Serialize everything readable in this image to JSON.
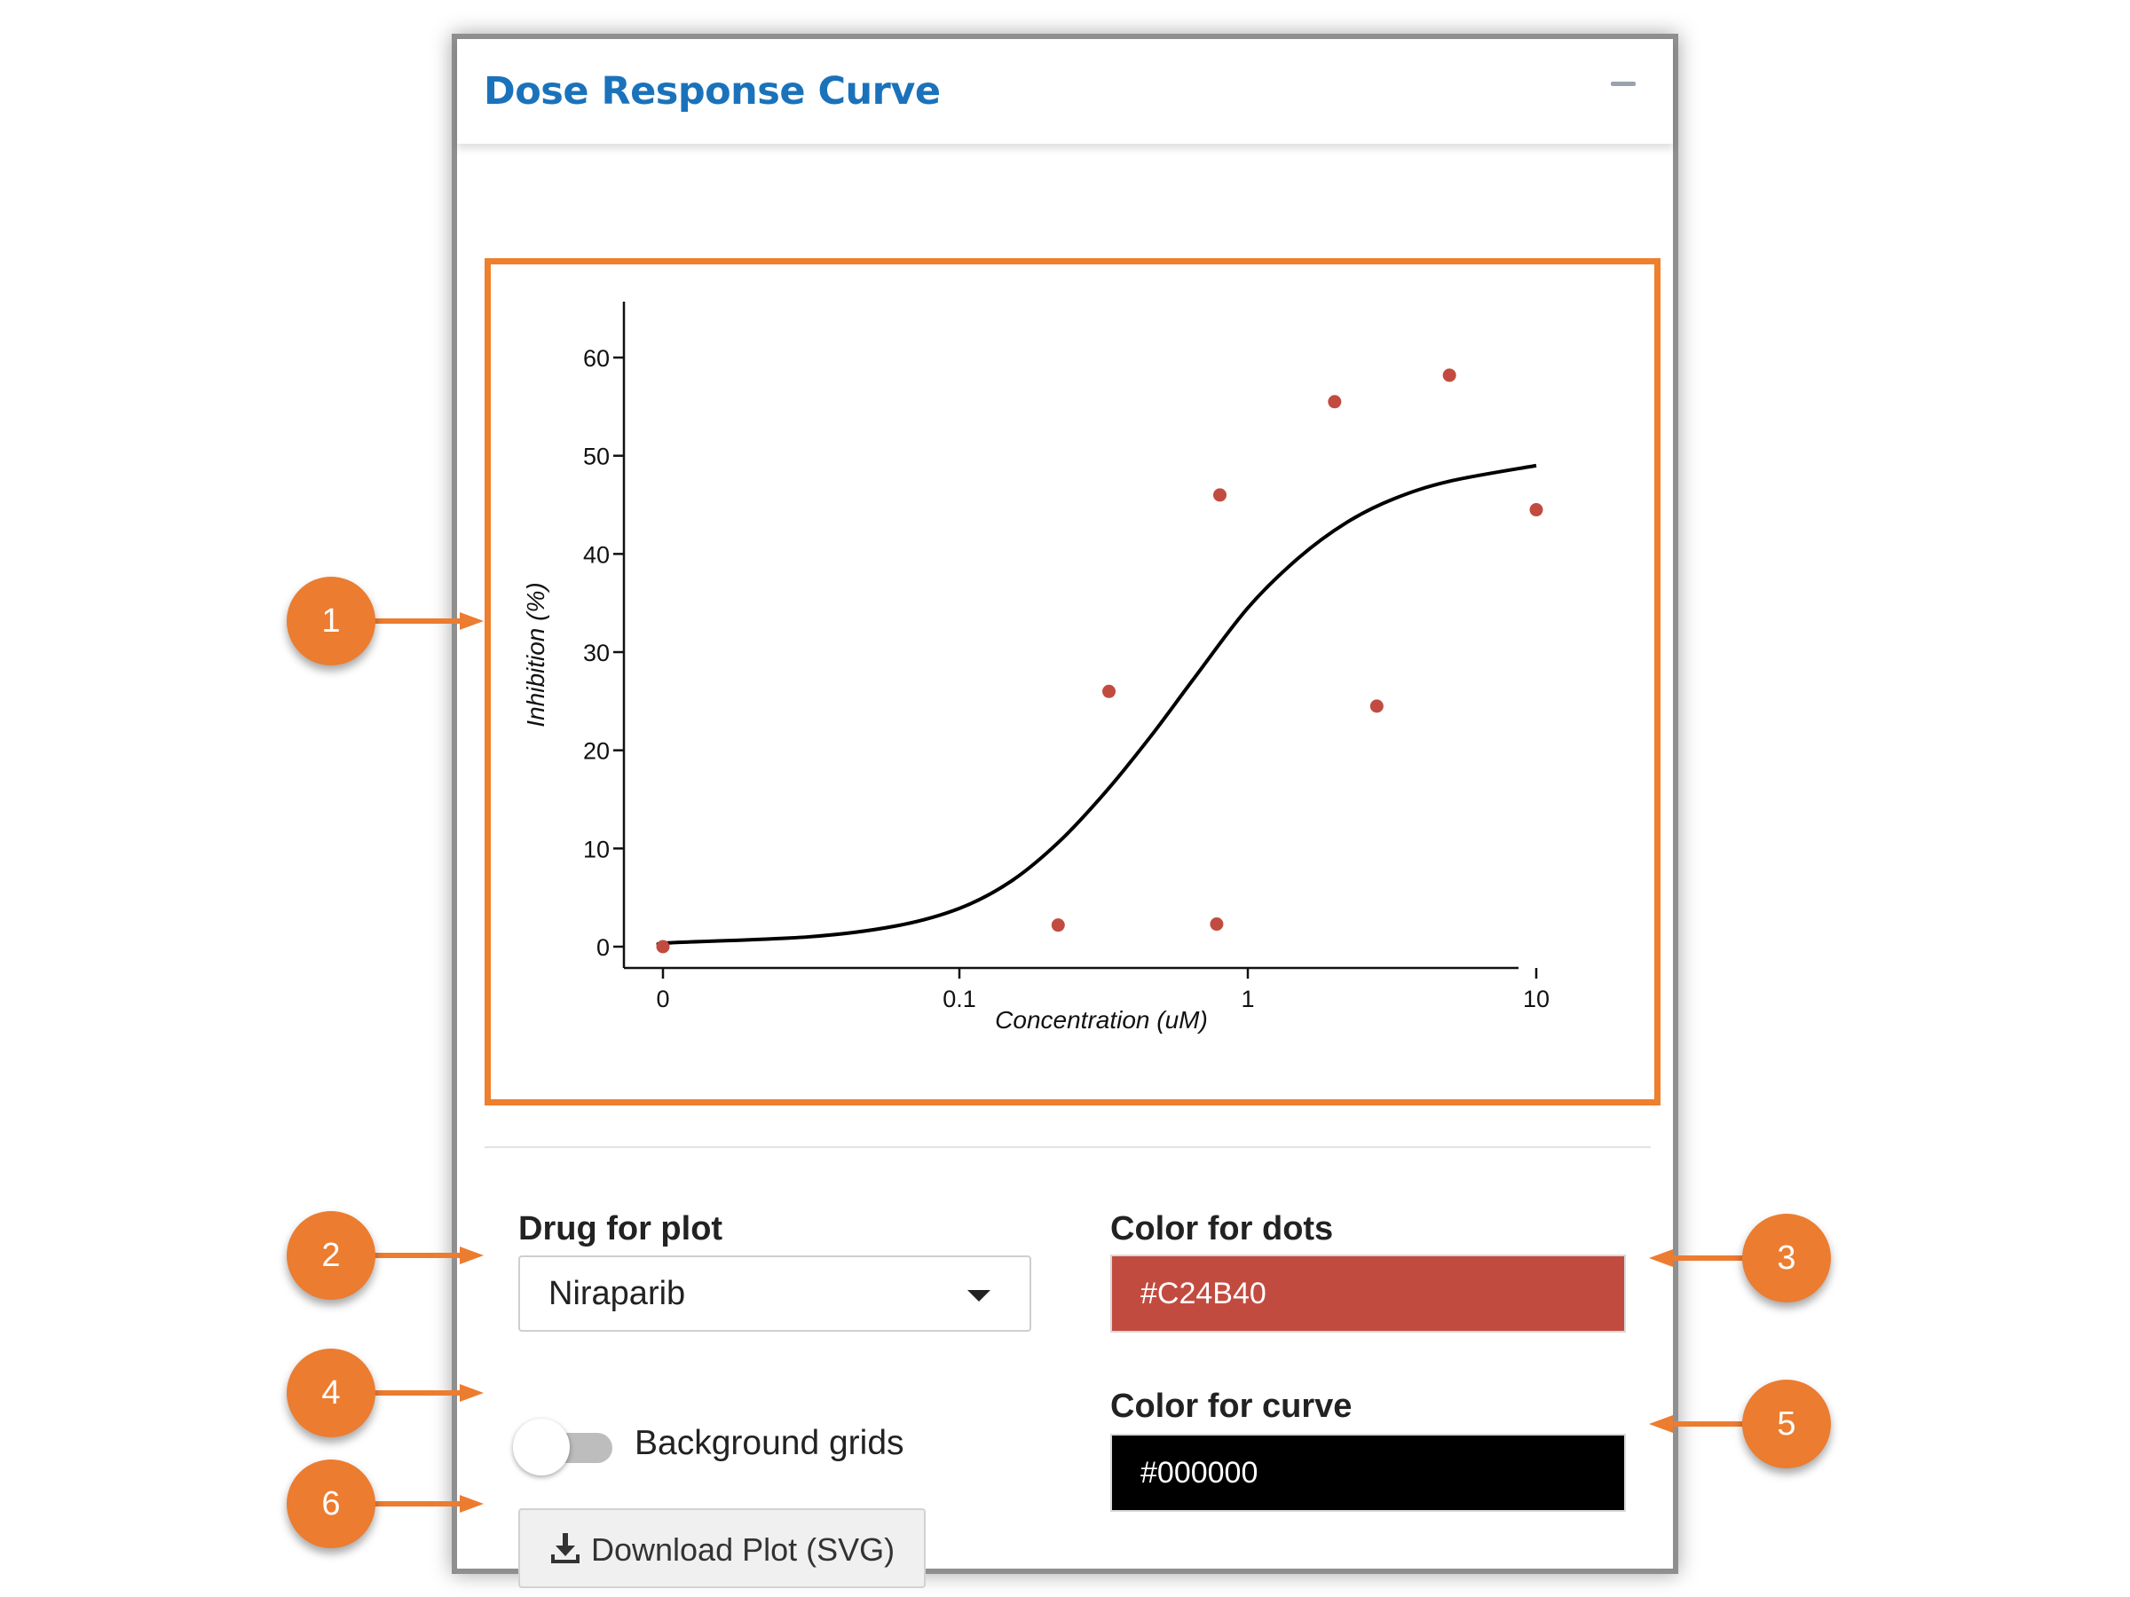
{
  "panel": {
    "title": "Dose Response Curve"
  },
  "chart_data": {
    "type": "scatter",
    "xlabel": "Concentration (uM)",
    "ylabel": "Inhibition (%)",
    "x_scale": "log",
    "x_ticks": [
      "0",
      "0.1",
      "1",
      "10"
    ],
    "y_ticks": [
      "0",
      "10",
      "20",
      "30",
      "40",
      "50",
      "60"
    ],
    "ylim": [
      0,
      60
    ],
    "series": [
      {
        "kind": "points",
        "color": "#C24B40",
        "points": [
          {
            "x": 0,
            "y": 0
          },
          {
            "x": 0.22,
            "y": 2.2
          },
          {
            "x": 0.33,
            "y": 26
          },
          {
            "x": 0.78,
            "y": 2.3
          },
          {
            "x": 0.8,
            "y": 46
          },
          {
            "x": 2.0,
            "y": 55.5
          },
          {
            "x": 2.8,
            "y": 24.5
          },
          {
            "x": 5.0,
            "y": 58.2
          },
          {
            "x": 10,
            "y": 44.5
          }
        ]
      },
      {
        "kind": "fitted-curve",
        "color": "#000000",
        "points": [
          {
            "x": 0,
            "y": 0.2
          },
          {
            "x": 0.01,
            "y": 0.4
          },
          {
            "x": 0.03,
            "y": 1.0
          },
          {
            "x": 0.06,
            "y": 2.1
          },
          {
            "x": 0.1,
            "y": 3.9
          },
          {
            "x": 0.15,
            "y": 6.6
          },
          {
            "x": 0.22,
            "y": 10.6
          },
          {
            "x": 0.32,
            "y": 15.7
          },
          {
            "x": 0.46,
            "y": 21.4
          },
          {
            "x": 0.65,
            "y": 27.3
          },
          {
            "x": 1.0,
            "y": 34.5
          },
          {
            "x": 1.5,
            "y": 39.6
          },
          {
            "x": 2.2,
            "y": 43.2
          },
          {
            "x": 3.2,
            "y": 45.6
          },
          {
            "x": 5.0,
            "y": 47.4
          },
          {
            "x": 10,
            "y": 49.0
          }
        ]
      }
    ]
  },
  "controls": {
    "drug_label": "Drug for plot",
    "drug_value": "Niraparib",
    "grid_toggle_label": "Background grids",
    "grid_enabled": false,
    "download_label": "Download Plot (SVG)",
    "dots_color_label": "Color for dots",
    "dots_color": "#C24B40",
    "curve_color_label": "Color for curve",
    "curve_color": "#000000"
  },
  "callouts": [
    "1",
    "2",
    "3",
    "4",
    "5",
    "6"
  ],
  "accent_color": "#EC7C30",
  "icons": {
    "collapse": "minus-icon",
    "dropdown": "caret-down-icon",
    "download": "download-icon"
  }
}
